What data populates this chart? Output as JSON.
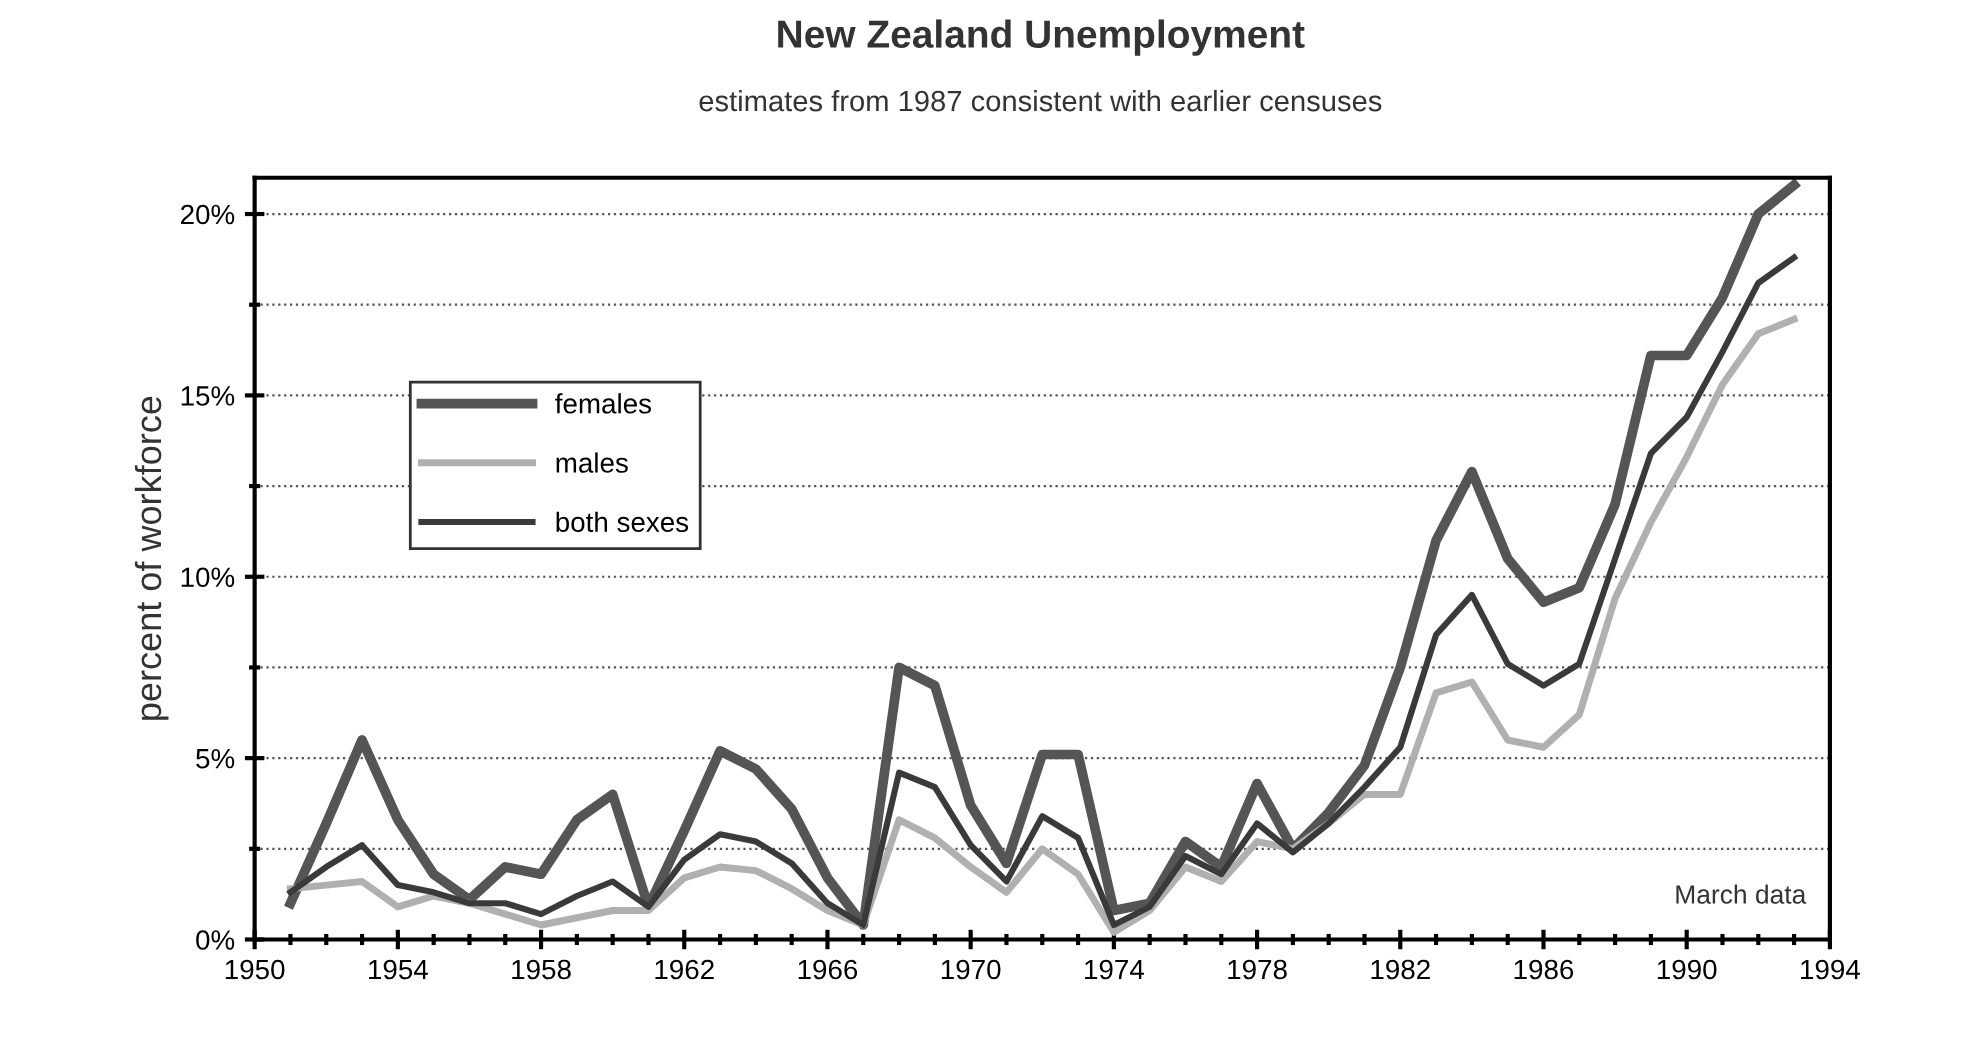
{
  "chart_data": {
    "type": "line",
    "title": "New Zealand Unemployment",
    "subtitle": "estimates from 1987 consistent with earlier censuses",
    "ylabel": "percent of workforce",
    "annotations": [
      "March data"
    ],
    "x": [
      1951,
      1952,
      1953,
      1954,
      1955,
      1956,
      1957,
      1958,
      1959,
      1960,
      1961,
      1962,
      1963,
      1964,
      1965,
      1966,
      1967,
      1968,
      1969,
      1970,
      1971,
      1972,
      1973,
      1974,
      1975,
      1976,
      1977,
      1978,
      1979,
      1980,
      1981,
      1982,
      1983,
      1984,
      1985,
      1986,
      1987,
      1988,
      1989,
      1990,
      1991,
      1992,
      1993
    ],
    "series": [
      {
        "name": "females",
        "color": "#555555",
        "values": [
          1.0,
          3.2,
          5.5,
          3.3,
          1.8,
          1.1,
          2.0,
          1.8,
          3.3,
          4.0,
          0.9,
          3.0,
          5.2,
          4.7,
          3.6,
          1.7,
          0.4,
          7.5,
          7.0,
          3.7,
          2.1,
          5.1,
          5.1,
          0.8,
          1.0,
          2.7,
          2.0,
          4.3,
          2.5,
          3.5,
          4.8,
          7.5,
          11.0,
          12.9,
          10.5,
          9.3,
          9.7,
          12.0,
          16.1,
          16.1,
          17.7,
          20.0,
          20.8
        ]
      },
      {
        "name": "males",
        "color": "#b0b0b0",
        "values": [
          1.4,
          1.5,
          1.6,
          0.9,
          1.2,
          1.0,
          0.7,
          0.4,
          0.6,
          0.8,
          0.8,
          1.7,
          2.0,
          1.9,
          1.4,
          0.8,
          0.4,
          3.3,
          2.8,
          2.0,
          1.3,
          2.5,
          1.8,
          0.2,
          0.8,
          2.0,
          1.6,
          2.7,
          2.5,
          3.2,
          4.0,
          4.0,
          6.8,
          7.1,
          5.5,
          5.3,
          6.2,
          9.4,
          11.5,
          13.3,
          15.3,
          16.7,
          17.1
        ]
      },
      {
        "name": "both sexes",
        "color": "#3a3a3a",
        "values": [
          1.3,
          2.0,
          2.6,
          1.5,
          1.3,
          1.0,
          1.0,
          0.7,
          1.2,
          1.6,
          0.9,
          2.2,
          2.9,
          2.7,
          2.1,
          1.0,
          0.4,
          4.6,
          4.2,
          2.6,
          1.6,
          3.4,
          2.8,
          0.4,
          0.9,
          2.3,
          1.8,
          3.2,
          2.4,
          3.2,
          4.2,
          5.3,
          8.4,
          9.5,
          7.6,
          7.0,
          7.6,
          10.5,
          13.4,
          14.4,
          16.2,
          18.1,
          18.8
        ]
      }
    ],
    "xlim": [
      1950,
      1994
    ],
    "xticks": [
      1950,
      {
        "value": 1951,
        "label": null
      },
      {
        "value": 1952,
        "label": null
      },
      {
        "value": 1953,
        "label": null
      },
      1954,
      {
        "value": 1955,
        "label": null
      },
      {
        "value": 1956,
        "label": null
      },
      {
        "value": 1957,
        "label": null
      },
      1958,
      {
        "value": 1959,
        "label": null
      },
      {
        "value": 1960,
        "label": null
      },
      {
        "value": 1961,
        "label": null
      },
      1962,
      {
        "value": 1963,
        "label": null
      },
      {
        "value": 1964,
        "label": null
      },
      {
        "value": 1965,
        "label": null
      },
      1966,
      {
        "value": 1967,
        "label": null
      },
      {
        "value": 1968,
        "label": null
      },
      {
        "value": 1969,
        "label": null
      },
      1970,
      {
        "value": 1971,
        "label": null
      },
      {
        "value": 1972,
        "label": null
      },
      {
        "value": 1973,
        "label": null
      },
      1974,
      {
        "value": 1975,
        "label": null
      },
      {
        "value": 1976,
        "label": null
      },
      {
        "value": 1977,
        "label": null
      },
      1978,
      {
        "value": 1979,
        "label": null
      },
      {
        "value": 1980,
        "label": null
      },
      {
        "value": 1981,
        "label": null
      },
      1982,
      {
        "value": 1983,
        "label": null
      },
      {
        "value": 1984,
        "label": null
      },
      {
        "value": 1985,
        "label": null
      },
      1986,
      {
        "value": 1987,
        "label": null
      },
      {
        "value": 1988,
        "label": null
      },
      {
        "value": 1989,
        "label": null
      },
      1990,
      {
        "value": 1991,
        "label": null
      },
      {
        "value": 1992,
        "label": null
      },
      {
        "value": 1993,
        "label": null
      },
      1994
    ],
    "ylim": [
      0,
      21
    ],
    "yticks": [
      {
        "value": 0,
        "label": "0%"
      },
      {
        "value": 2.5,
        "label": null
      },
      {
        "value": 5,
        "label": "5%"
      },
      {
        "value": 7.5,
        "label": null
      },
      {
        "value": 10,
        "label": "10%"
      },
      {
        "value": 12.5,
        "label": null
      },
      {
        "value": 15,
        "label": "15%"
      },
      {
        "value": 17.5,
        "label": null
      },
      {
        "value": 20,
        "label": "20%"
      }
    ],
    "grid": "y",
    "legend": "top left",
    "marker": "none",
    "line_style": "solid"
  }
}
